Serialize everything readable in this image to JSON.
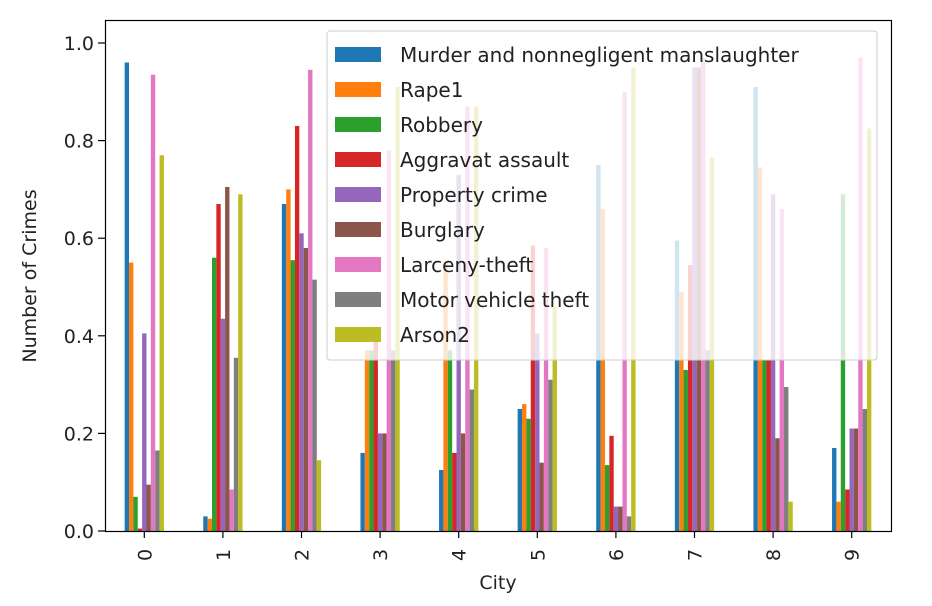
{
  "chart_data": {
    "type": "bar",
    "title": "",
    "xlabel": "City",
    "ylabel": "Number of Crimes",
    "ylim": [
      0,
      1.0
    ],
    "y_ticks": [
      "0.0",
      "0.2",
      "0.4",
      "0.6",
      "0.8",
      "1.0"
    ],
    "categories": [
      "0",
      "1",
      "2",
      "3",
      "4",
      "5",
      "6",
      "7",
      "8",
      "9"
    ],
    "grid": false,
    "legend_position": "top-right",
    "series": [
      {
        "name": "Murder and nonnegligent manslaughter",
        "color": "#1f77b4",
        "values": [
          0.96,
          0.03,
          0.67,
          0.16,
          0.125,
          0.25,
          0.75,
          0.595,
          0.91,
          0.17
        ]
      },
      {
        "name": "Rape1",
        "color": "#ff7f0e",
        "values": [
          0.55,
          0.025,
          0.7,
          0.37,
          0.55,
          0.26,
          0.66,
          0.49,
          0.745,
          0.06
        ]
      },
      {
        "name": "Robbery",
        "color": "#2ca02c",
        "values": [
          0.07,
          0.56,
          0.555,
          0.37,
          0.37,
          0.23,
          0.135,
          0.33,
          0.35,
          0.69
        ]
      },
      {
        "name": "Aggravat assault",
        "color": "#d62728",
        "values": [
          0.005,
          0.67,
          0.83,
          0.4,
          0.16,
          0.585,
          0.195,
          0.545,
          0.35,
          0.085
        ]
      },
      {
        "name": "Property crime",
        "color": "#9467bd",
        "values": [
          0.405,
          0.435,
          0.61,
          0.2,
          0.73,
          0.405,
          0.05,
          0.95,
          0.69,
          0.21
        ]
      },
      {
        "name": "Burglary",
        "color": "#8c564b",
        "values": [
          0.095,
          0.705,
          0.58,
          0.2,
          0.2,
          0.14,
          0.05,
          0.95,
          0.19,
          0.21
        ]
      },
      {
        "name": "Larceny-theft",
        "color": "#e377c2",
        "values": [
          0.935,
          0.085,
          0.945,
          0.78,
          0.87,
          0.58,
          0.9,
          0.97,
          0.66,
          0.97
        ]
      },
      {
        "name": "Motor vehicle theft",
        "color": "#7f7f7f",
        "values": [
          0.165,
          0.355,
          0.515,
          0.37,
          0.29,
          0.31,
          0.03,
          0.37,
          0.295,
          0.25
        ]
      },
      {
        "name": "Arson2",
        "color": "#bcbd22",
        "values": [
          0.77,
          0.69,
          0.145,
          0.91,
          0.87,
          0.46,
          0.95,
          0.765,
          0.06,
          0.825
        ]
      }
    ]
  }
}
